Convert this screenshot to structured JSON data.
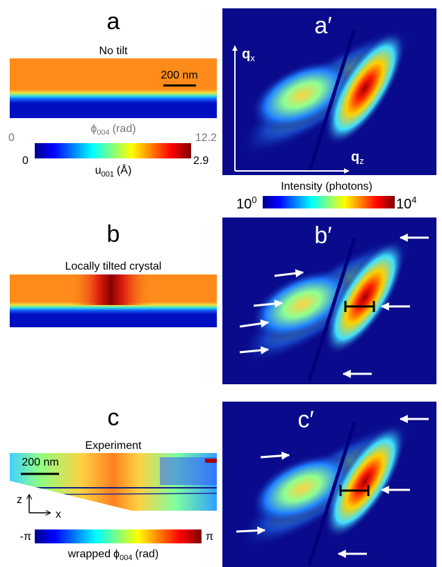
{
  "panel_a": {
    "label": "a",
    "title": "No tilt",
    "scale_bar": "200 nm",
    "phase_bar": {
      "symbol": "ϕ",
      "sub": "004",
      "unit": "(rad)",
      "min": 0,
      "max": 12.2
    },
    "disp_bar": {
      "symbol": "u",
      "sub": "001",
      "unit": "(Å)",
      "min": 0,
      "max": 2.9
    }
  },
  "panel_a_prime": {
    "label": "a′",
    "qx": {
      "symbol": "q",
      "sub": "x"
    },
    "qz": {
      "symbol": "q",
      "sub": "z"
    },
    "intensity_bar": {
      "title": "Intensity (photons)",
      "min": {
        "base": "10",
        "exp": 0
      },
      "max": {
        "base": "10",
        "exp": 4
      }
    }
  },
  "panel_b": {
    "label": "b",
    "title": "Locally tilted crystal"
  },
  "panel_b_prime": {
    "label": "b′"
  },
  "panel_c": {
    "label": "c",
    "title": "Experiment",
    "scale_bar": "200 nm",
    "axis_z": "z",
    "axis_x": "x",
    "phase_bar": {
      "min": "-π",
      "max": "π",
      "prefix": "wrapped",
      "symbol": "ϕ",
      "sub": "004",
      "unit": "(rad)"
    }
  },
  "panel_c_prime": {
    "label": "c′"
  }
}
